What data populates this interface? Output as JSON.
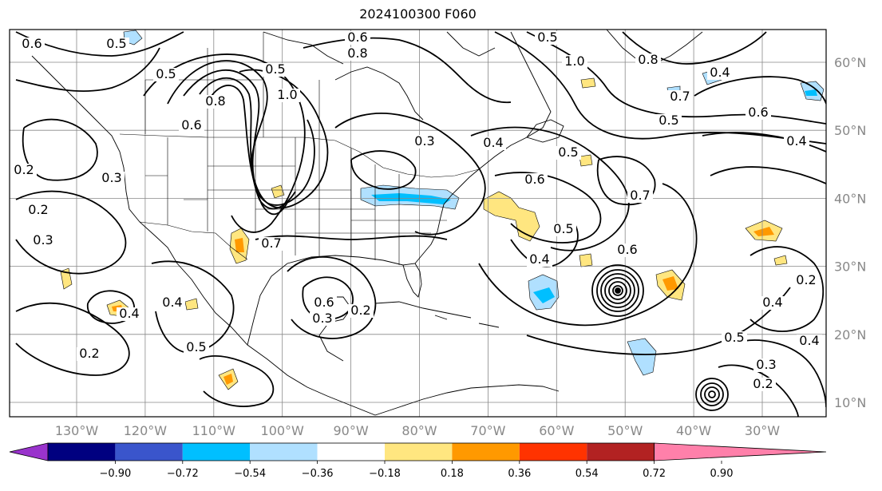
{
  "title": "2024100300 F060",
  "map": {
    "lon_range": [
      -135,
      -15
    ],
    "lat_range": [
      6,
      65
    ],
    "lon_ticks": [
      -130,
      -120,
      -110,
      -100,
      -90,
      -80,
      -70,
      -60,
      -50,
      -40,
      -30
    ],
    "lat_ticks": [
      10,
      20,
      30,
      40,
      50,
      60
    ],
    "lon_tick_labels": [
      "130°W",
      "120°W",
      "110°W",
      "100°W",
      "90°W",
      "80°W",
      "70°W",
      "60°W",
      "50°W",
      "40°W",
      "30°W"
    ],
    "lat_tick_labels": [
      "10°N",
      "20°N",
      "30°N",
      "40°N",
      "50°N",
      "60°N"
    ],
    "contour_labels": [
      "0.6",
      "0.5",
      "0.6",
      "0.8",
      "0.5",
      "1.0",
      "0.5",
      "0.5",
      "0.8",
      "1.0",
      "0.8",
      "0.4",
      "0.7",
      "0.5",
      "0.6",
      "0.4",
      "0.3",
      "0.4",
      "0.5",
      "0.6",
      "0.7",
      "0.5",
      "0.4",
      "0.6",
      "0.7",
      "0.6",
      "0.2",
      "0.3",
      "0.4",
      "0.4",
      "0.2",
      "0.5",
      "0.2",
      "0.3",
      "0.2",
      "0.3",
      "0.6",
      "0.5",
      "0.4",
      "0.2",
      "0.3",
      "0.2",
      "0.4"
    ]
  },
  "colorbar": {
    "levels": [
      "−0.90",
      "−0.72",
      "−0.54",
      "−0.36",
      "−0.18",
      "0.18",
      "0.36",
      "0.54",
      "0.72",
      "0.90"
    ],
    "colors": [
      "#9933cc",
      "#000080",
      "#3a55cc",
      "#00bfff",
      "#b0e0ff",
      "#ffffff",
      "#ffe680",
      "#ff9900",
      "#ff3300",
      "#b22222",
      "#ff80aa"
    ]
  }
}
